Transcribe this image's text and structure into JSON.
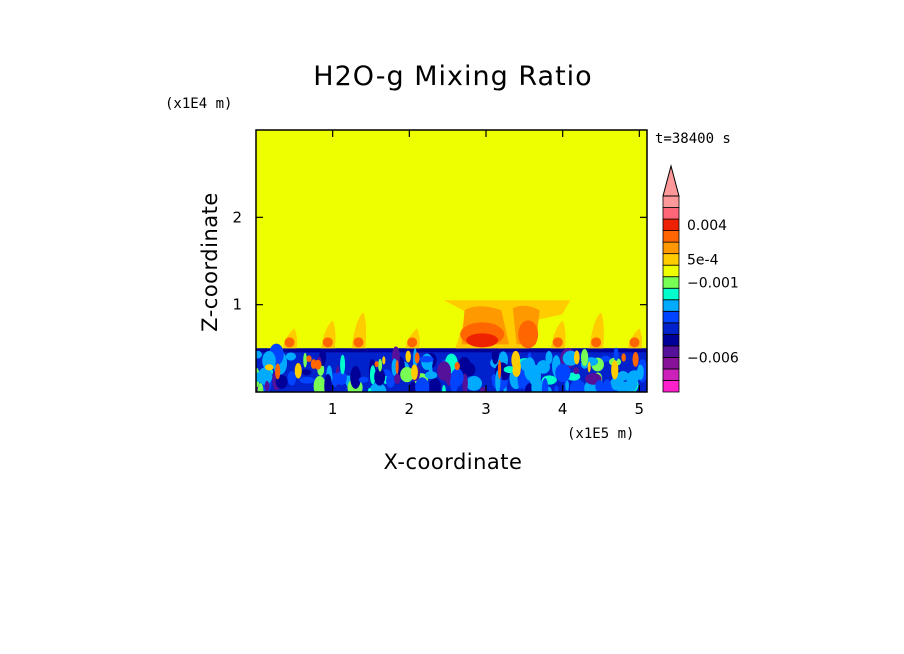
{
  "chart_data": {
    "type": "heatmap",
    "title": "H2O-g Mixing Ratio",
    "xlabel": "X-coordinate",
    "ylabel": "Z-coordinate",
    "x_scale_note": "(x1E5 m)",
    "y_scale_note": "(x1E4 m)",
    "time_label": "t=38400 s",
    "xlim": [
      0,
      5.1
    ],
    "ylim": [
      0,
      3.0
    ],
    "x_ticks": [
      {
        "value": 1,
        "label": "1"
      },
      {
        "value": 2,
        "label": "2"
      },
      {
        "value": 3,
        "label": "3"
      },
      {
        "value": 4,
        "label": "4"
      },
      {
        "value": 5,
        "label": "5"
      }
    ],
    "y_ticks": [
      {
        "value": 1,
        "label": "1"
      },
      {
        "value": 2,
        "label": "2"
      }
    ],
    "background_level_color": "#eeff00",
    "boundary_layer_top": 0.5,
    "cloud_region": {
      "x_range": [
        2.45,
        4.1
      ],
      "z_range": [
        0.45,
        1.05
      ]
    },
    "colorbar": {
      "extend": "max",
      "colors": [
        "#ff22cc",
        "#cc22bb",
        "#881199",
        "#551199",
        "#000099",
        "#0022cc",
        "#0044ff",
        "#00aaff",
        "#00ffcc",
        "#77ff55",
        "#eeff00",
        "#ffcc00",
        "#ff9900",
        "#ff6600",
        "#ee2200",
        "#ff6677",
        "#ff9999"
      ],
      "labels": [
        {
          "text": "0.004",
          "index": 14
        },
        {
          "text": "5e-4",
          "index": 11
        },
        {
          "text": "−0.001",
          "index": 9
        },
        {
          "text": "−0.006",
          "index": 2.5
        }
      ]
    }
  }
}
